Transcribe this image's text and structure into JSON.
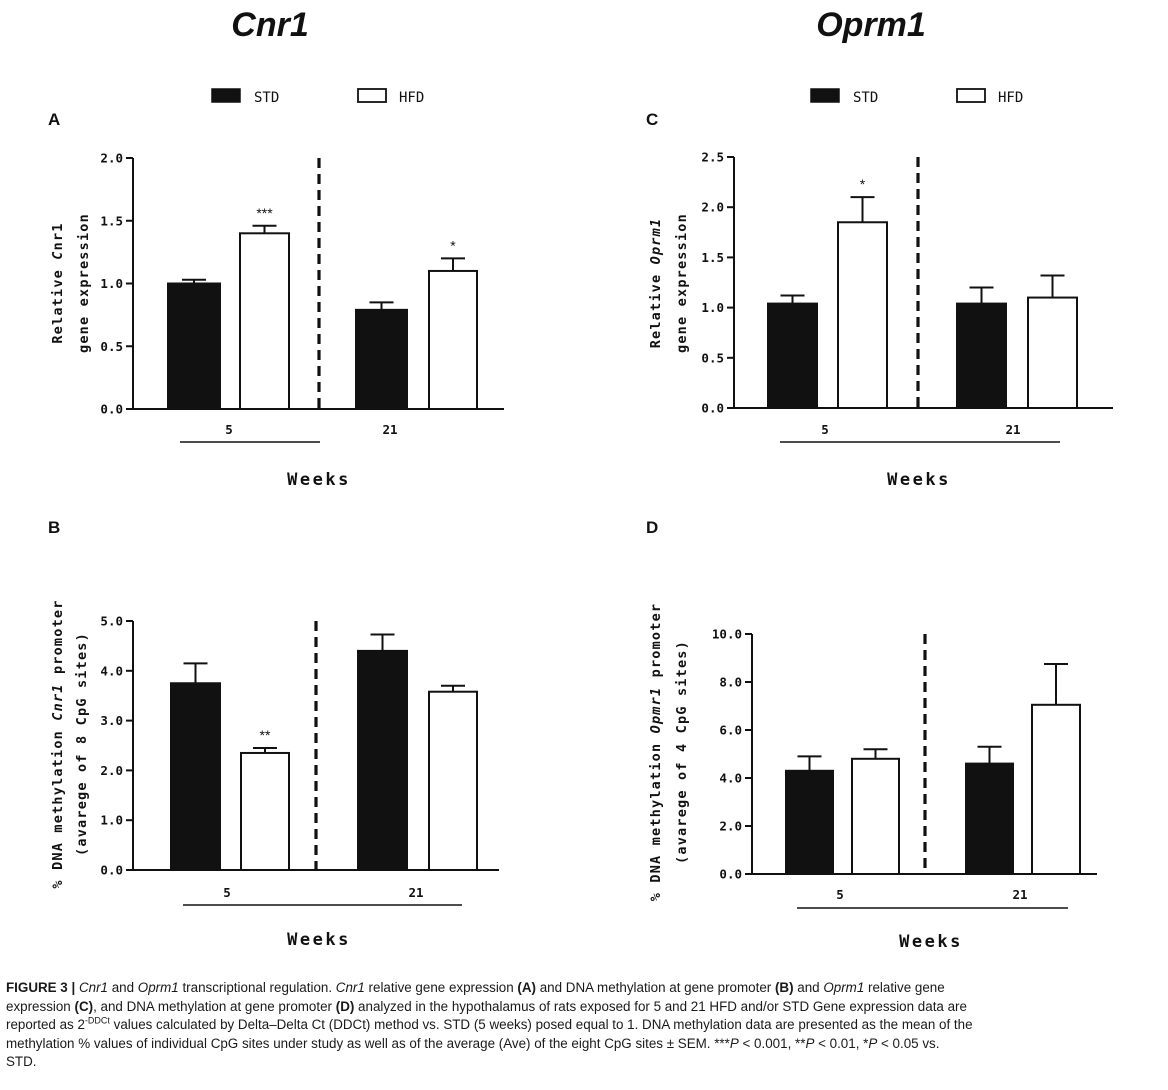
{
  "columns": [
    {
      "title": "Cnr1"
    },
    {
      "title": "Oprm1"
    }
  ],
  "legend": {
    "entries": [
      "STD",
      "HFD"
    ]
  },
  "chart_data": [
    {
      "panel": "A",
      "type": "bar",
      "ylabel_lines": [
        [
          "Relative ",
          "C",
          "nr1",
          ""
        ],
        [
          "gene expression"
        ]
      ],
      "xlabel": "Weeks",
      "groups": [
        "5",
        "21"
      ],
      "series": [
        {
          "name": "STD",
          "values": [
            1.0,
            0.79
          ],
          "errors": [
            0.03,
            0.06
          ]
        },
        {
          "name": "HFD",
          "values": [
            1.4,
            1.1
          ],
          "errors": [
            0.06,
            0.1
          ]
        }
      ],
      "significance": [
        [
          "",
          ""
        ],
        [
          "***",
          "*"
        ]
      ],
      "ylim": [
        0,
        2.0
      ],
      "ticks": [
        0.0,
        0.5,
        1.0,
        1.5,
        2.0
      ],
      "tick_labels": [
        "0.0",
        "0.5",
        "1.0",
        "1.5",
        "2.0"
      ]
    },
    {
      "panel": "B",
      "type": "bar",
      "ylabel_lines": [
        [
          "% DNA methylation ",
          "Cnr1",
          " promoter"
        ],
        [
          "(avarege of 8 CpG sites)"
        ]
      ],
      "xlabel": "Weeks",
      "groups": [
        "5",
        "21"
      ],
      "series": [
        {
          "name": "STD",
          "values": [
            3.75,
            4.4
          ],
          "errors": [
            0.4,
            0.33
          ]
        },
        {
          "name": "HFD",
          "values": [
            2.35,
            3.58
          ],
          "errors": [
            0.1,
            0.12
          ]
        }
      ],
      "significance": [
        [
          "",
          ""
        ],
        [
          "**",
          ""
        ]
      ],
      "ylim": [
        0,
        5.0
      ],
      "ticks": [
        0.0,
        1.0,
        2.0,
        3.0,
        4.0,
        5.0
      ],
      "tick_labels": [
        "0.0",
        "1.0",
        "2.0",
        "3.0",
        "4.0",
        "5.0"
      ]
    },
    {
      "panel": "C",
      "type": "bar",
      "ylabel_lines": [
        [
          "Relative ",
          "Oprm1",
          ""
        ],
        [
          "gene expression"
        ]
      ],
      "xlabel": "Weeks",
      "groups": [
        "5",
        "21"
      ],
      "series": [
        {
          "name": "STD",
          "values": [
            1.04,
            1.04
          ],
          "errors": [
            0.08,
            0.16
          ]
        },
        {
          "name": "HFD",
          "values": [
            1.85,
            1.1
          ],
          "errors": [
            0.25,
            0.22
          ]
        }
      ],
      "significance": [
        [
          "",
          ""
        ],
        [
          "*",
          ""
        ]
      ],
      "ylim": [
        0,
        2.5
      ],
      "ticks": [
        0.0,
        0.5,
        1.0,
        1.5,
        2.0,
        2.5
      ],
      "tick_labels": [
        "0.0",
        "0.5",
        "1.0",
        "1.5",
        "2.0",
        "2.5"
      ]
    },
    {
      "panel": "D",
      "type": "bar",
      "ylabel_lines": [
        [
          "% DNA methylation ",
          "Opmr1",
          " promoter"
        ],
        [
          "(avarege of 4 CpG sites)"
        ]
      ],
      "xlabel": "Weeks",
      "groups": [
        "5",
        "21"
      ],
      "series": [
        {
          "name": "STD",
          "values": [
            4.3,
            4.6
          ],
          "errors": [
            0.6,
            0.7
          ]
        },
        {
          "name": "HFD",
          "values": [
            4.8,
            7.05
          ],
          "errors": [
            0.4,
            1.7
          ]
        }
      ],
      "significance": [
        [
          "",
          ""
        ],
        [
          "",
          ""
        ]
      ],
      "ylim": [
        0,
        10.0
      ],
      "ticks": [
        0.0,
        2.0,
        4.0,
        6.0,
        8.0,
        10.0
      ],
      "tick_labels": [
        "0.0",
        "2.0",
        "4.0",
        "6.0",
        "8.0",
        "10.0"
      ]
    }
  ],
  "caption": {
    "lines": [
      [
        [
          "b",
          "FIGURE 3 |"
        ],
        [
          "t",
          " "
        ],
        [
          "i",
          "Cnr1"
        ],
        [
          "t",
          " and "
        ],
        [
          "i",
          "Oprm1"
        ],
        [
          "t",
          " transcriptional regulation. "
        ],
        [
          "i",
          "Cnr1"
        ],
        [
          "t",
          " relative gene expression "
        ],
        [
          "b",
          "(A)"
        ],
        [
          "t",
          " and DNA methylation at gene promoter "
        ],
        [
          "b",
          "(B)"
        ],
        [
          "t",
          " and "
        ],
        [
          "i",
          "Oprm1"
        ],
        [
          "t",
          " relative gene"
        ]
      ],
      [
        [
          "t",
          "expression "
        ],
        [
          "b",
          "(C)"
        ],
        [
          "t",
          ", and DNA methylation at gene promoter "
        ],
        [
          "b",
          "(D)"
        ],
        [
          "t",
          " analyzed in the hypothalamus of rats exposed for 5 and 21 HFD and/or STD Gene expression data are"
        ]
      ],
      [
        [
          "t",
          "reported as 2"
        ],
        [
          "sup",
          "-DDCt"
        ],
        [
          "t",
          " values calculated by Delta–Delta Ct (DDCt) method vs. STD (5 weeks) posed equal to 1. DNA methylation data are presented as the mean of the"
        ]
      ],
      [
        [
          "t",
          "methylation % values of individual CpG sites under study as well as of the average (Ave) of the eight CpG sites ± SEM. ***"
        ],
        [
          "i",
          "P"
        ],
        [
          "t",
          " < 0.001, **"
        ],
        [
          "i",
          "P"
        ],
        [
          "t",
          " < 0.01, *"
        ],
        [
          "i",
          "P"
        ],
        [
          "t",
          " < 0.05 vs."
        ]
      ],
      [
        [
          "t",
          "STD."
        ]
      ]
    ]
  }
}
